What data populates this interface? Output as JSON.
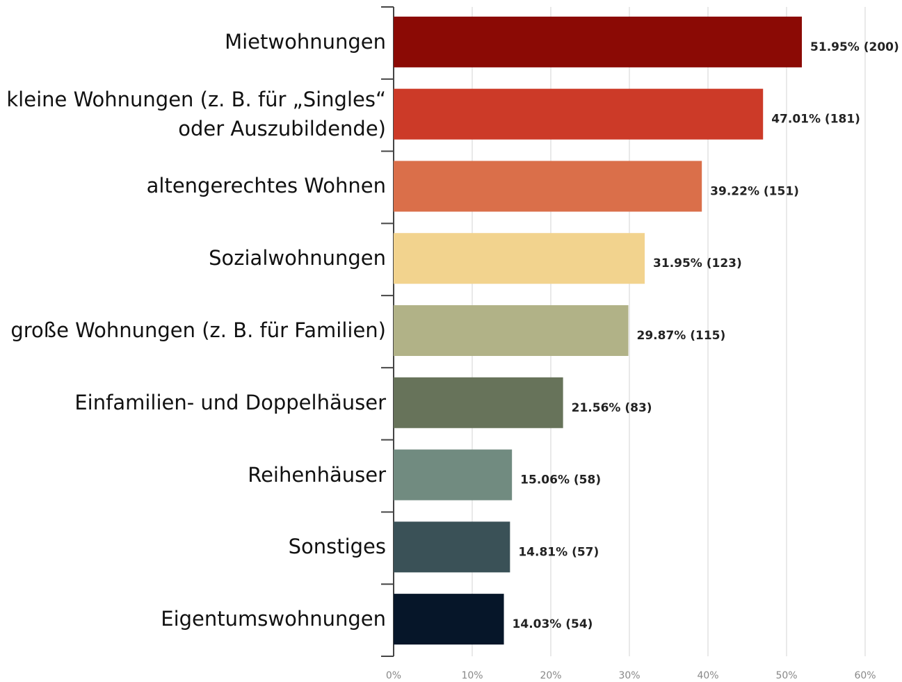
{
  "chart_data": {
    "type": "barh",
    "categories": [
      "Mietwohnungen",
      "kleine Wohnungen (z. B. für „Singles“\noder Auszubildende)",
      "altengerechtes Wohnen",
      "Sozialwohnungen",
      "große Wohnungen (z. B. für Familien)",
      "Einfamilien- und Doppelhäuser",
      "Reihenhäuser",
      "Sonstiges",
      "Eigentumswohnungen"
    ],
    "values": [
      51.95,
      47.01,
      39.22,
      31.95,
      29.87,
      21.56,
      15.06,
      14.81,
      14.03
    ],
    "value_labels": [
      "51.95% (200)",
      "47.01% (181)",
      "39.22% (151)",
      "31.95% (123)",
      "29.87% (115)",
      "21.56% (83)",
      "15.06% (58)",
      "14.81% (57)",
      "14.03% (54)"
    ],
    "colors": [
      "#8b0a05",
      "#cc3a28",
      "#da6f4a",
      "#f2d38e",
      "#b1b287",
      "#67735a",
      "#718b80",
      "#3a5157",
      "#061629"
    ],
    "xlim": [
      0,
      60
    ],
    "xticks": [
      {
        "value": 0,
        "label": "0%"
      },
      {
        "value": 10,
        "label": "10%"
      },
      {
        "value": 20,
        "label": "20%"
      },
      {
        "value": 30,
        "label": "30%"
      },
      {
        "value": 40,
        "label": "40%"
      },
      {
        "value": 50,
        "label": "50%"
      },
      {
        "value": 60,
        "label": "60%"
      }
    ],
    "grid": true
  }
}
